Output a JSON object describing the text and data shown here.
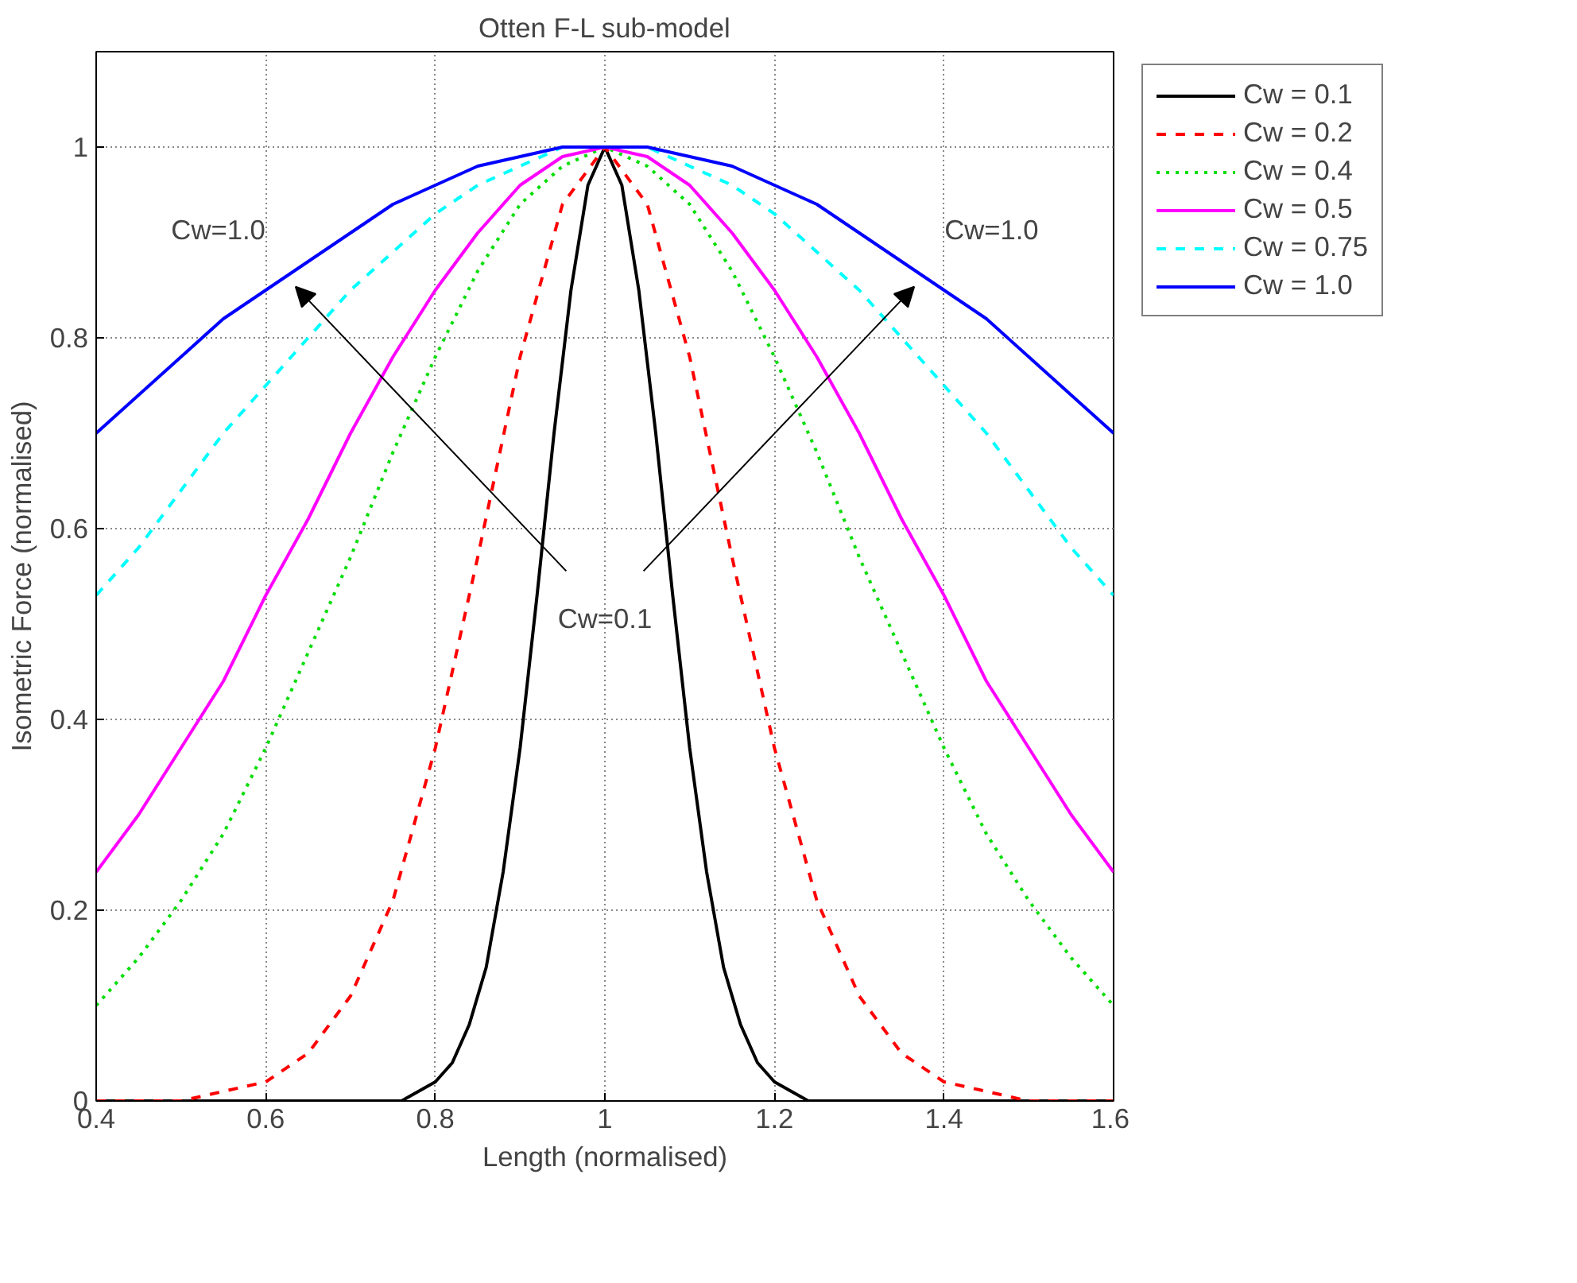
{
  "chart_data": {
    "type": "line",
    "title": "Otten F-L sub-model",
    "xlabel": "Length (normalised)",
    "ylabel": "Isometric Force (normalised)",
    "x": [
      0.4,
      0.45,
      0.5,
      0.55,
      0.6,
      0.65,
      0.7,
      0.75,
      0.8,
      0.85,
      0.9,
      0.95,
      1.0,
      1.05,
      1.1,
      1.15,
      1.2,
      1.25,
      1.3,
      1.35,
      1.4,
      1.45,
      1.5,
      1.55,
      1.6
    ],
    "series": [
      {
        "name": "Cw = 0.1",
        "color": "#000000",
        "line_style": "solid",
        "x": [
          0.4,
          0.76,
          0.78,
          0.8,
          0.82,
          0.84,
          0.86,
          0.88,
          0.9,
          0.92,
          0.94,
          0.96,
          0.98,
          1.0,
          1.02,
          1.04,
          1.06,
          1.08,
          1.1,
          1.12,
          1.14,
          1.16,
          1.18,
          1.2,
          1.22,
          1.24,
          1.6
        ],
        "values": [
          0,
          0,
          0.01,
          0.02,
          0.04,
          0.08,
          0.14,
          0.24,
          0.37,
          0.53,
          0.7,
          0.85,
          0.96,
          1.0,
          0.96,
          0.85,
          0.7,
          0.53,
          0.37,
          0.24,
          0.14,
          0.08,
          0.04,
          0.02,
          0.01,
          0,
          0
        ]
      },
      {
        "name": "Cw = 0.2",
        "color": "#ff0000",
        "line_style": "dashed",
        "values": [
          0,
          0,
          0,
          0.01,
          0.02,
          0.05,
          0.11,
          0.21,
          0.37,
          0.57,
          0.78,
          0.94,
          1.0,
          0.94,
          0.78,
          0.57,
          0.37,
          0.21,
          0.11,
          0.05,
          0.02,
          0.01,
          0,
          0,
          0
        ]
      },
      {
        "name": "Cw = 0.4",
        "color": "#00dd00",
        "line_style": "dotted",
        "values": [
          0.1,
          0.15,
          0.21,
          0.28,
          0.37,
          0.47,
          0.57,
          0.68,
          0.78,
          0.87,
          0.94,
          0.98,
          1.0,
          0.98,
          0.94,
          0.87,
          0.78,
          0.68,
          0.57,
          0.47,
          0.37,
          0.28,
          0.21,
          0.15,
          0.1
        ]
      },
      {
        "name": "Cw = 0.5",
        "color": "#ff00ff",
        "line_style": "solid",
        "values": [
          0.24,
          0.3,
          0.37,
          0.44,
          0.53,
          0.61,
          0.7,
          0.78,
          0.85,
          0.91,
          0.96,
          0.99,
          1.0,
          0.99,
          0.96,
          0.91,
          0.85,
          0.78,
          0.7,
          0.61,
          0.53,
          0.44,
          0.37,
          0.3,
          0.24
        ]
      },
      {
        "name": "Cw = 0.75",
        "color": "#00ffff",
        "line_style": "dashed",
        "values": [
          0.53,
          0.58,
          0.64,
          0.7,
          0.75,
          0.8,
          0.85,
          0.89,
          0.93,
          0.96,
          0.98,
          1.0,
          1.0,
          1.0,
          0.98,
          0.96,
          0.93,
          0.89,
          0.85,
          0.8,
          0.75,
          0.7,
          0.64,
          0.58,
          0.53
        ]
      },
      {
        "name": "Cw = 1.0",
        "color": "#0000ff",
        "line_style": "solid",
        "values": [
          0.7,
          0.74,
          0.78,
          0.82,
          0.85,
          0.88,
          0.91,
          0.94,
          0.96,
          0.98,
          0.99,
          1.0,
          1.0,
          1.0,
          0.99,
          0.98,
          0.96,
          0.94,
          0.91,
          0.88,
          0.85,
          0.82,
          0.78,
          0.74,
          0.7
        ]
      }
    ],
    "xlim": [
      0.4,
      1.6
    ],
    "ylim": [
      0,
      1.1
    ],
    "xticks": [
      0.4,
      0.6,
      0.8,
      1,
      1.2,
      1.4,
      1.6
    ],
    "yticks": [
      0,
      0.2,
      0.4,
      0.6,
      0.8,
      1
    ],
    "grid": true,
    "legend": "right",
    "annotations": [
      "Cw=0.1",
      "Cw=1.0",
      "Cw=1.0"
    ]
  }
}
